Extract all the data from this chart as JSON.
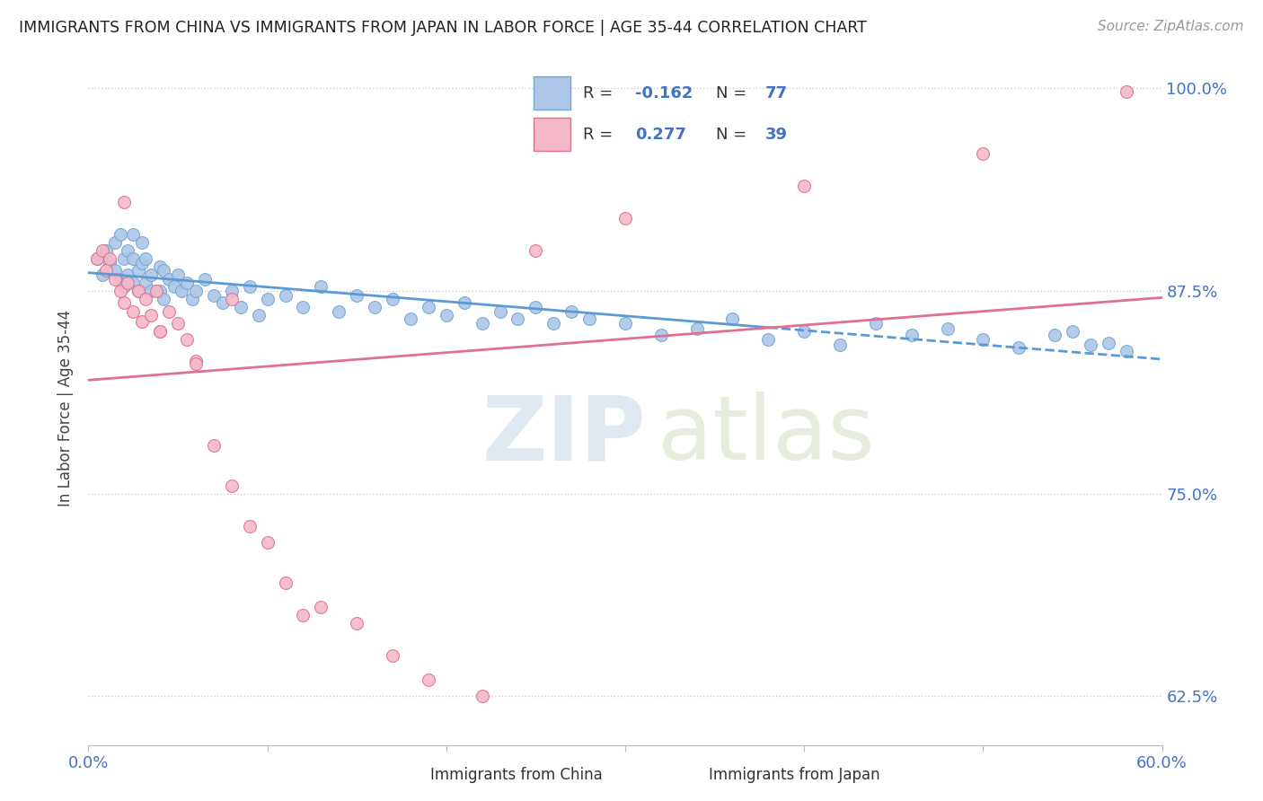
{
  "title": "IMMIGRANTS FROM CHINA VS IMMIGRANTS FROM JAPAN IN LABOR FORCE | AGE 35-44 CORRELATION CHART",
  "source": "Source: ZipAtlas.com",
  "ylabel": "In Labor Force | Age 35-44",
  "xlim": [
    0.0,
    0.6
  ],
  "ylim": [
    0.595,
    1.01
  ],
  "yticks": [
    0.625,
    0.75,
    0.875,
    1.0
  ],
  "ytick_labels": [
    "62.5%",
    "75.0%",
    "87.5%",
    "100.0%"
  ],
  "xtick_labels_left": "0.0%",
  "xtick_labels_right": "60.0%",
  "china_color": "#aec6e8",
  "china_edge_color": "#6fa8d4",
  "japan_color": "#f5b8c8",
  "japan_edge_color": "#e07090",
  "china_trend_color": "#5b9bd5",
  "japan_trend_color": "#e07090",
  "r_china": -0.162,
  "n_china": 77,
  "r_japan": 0.277,
  "n_japan": 39,
  "background_color": "#ffffff",
  "china_x": [
    0.005,
    0.008,
    0.01,
    0.012,
    0.015,
    0.015,
    0.018,
    0.018,
    0.02,
    0.02,
    0.022,
    0.022,
    0.025,
    0.025,
    0.025,
    0.028,
    0.028,
    0.03,
    0.03,
    0.032,
    0.032,
    0.035,
    0.035,
    0.04,
    0.04,
    0.042,
    0.042,
    0.045,
    0.048,
    0.05,
    0.052,
    0.055,
    0.058,
    0.06,
    0.065,
    0.07,
    0.075,
    0.08,
    0.085,
    0.09,
    0.095,
    0.1,
    0.11,
    0.12,
    0.13,
    0.14,
    0.15,
    0.16,
    0.17,
    0.18,
    0.19,
    0.2,
    0.21,
    0.22,
    0.23,
    0.24,
    0.25,
    0.26,
    0.27,
    0.28,
    0.3,
    0.32,
    0.34,
    0.36,
    0.38,
    0.4,
    0.42,
    0.44,
    0.46,
    0.48,
    0.5,
    0.52,
    0.54,
    0.56,
    0.58,
    0.55,
    0.57
  ],
  "china_y": [
    0.895,
    0.885,
    0.9,
    0.892,
    0.888,
    0.905,
    0.882,
    0.91,
    0.895,
    0.878,
    0.9,
    0.885,
    0.895,
    0.88,
    0.91,
    0.888,
    0.875,
    0.892,
    0.905,
    0.88,
    0.895,
    0.885,
    0.875,
    0.89,
    0.875,
    0.888,
    0.87,
    0.882,
    0.878,
    0.885,
    0.875,
    0.88,
    0.87,
    0.875,
    0.882,
    0.872,
    0.868,
    0.875,
    0.865,
    0.878,
    0.86,
    0.87,
    0.872,
    0.865,
    0.878,
    0.862,
    0.872,
    0.865,
    0.87,
    0.858,
    0.865,
    0.86,
    0.868,
    0.855,
    0.862,
    0.858,
    0.865,
    0.855,
    0.862,
    0.858,
    0.855,
    0.848,
    0.852,
    0.858,
    0.845,
    0.85,
    0.842,
    0.855,
    0.848,
    0.852,
    0.845,
    0.84,
    0.848,
    0.842,
    0.838,
    0.85,
    0.843
  ],
  "japan_x": [
    0.005,
    0.008,
    0.01,
    0.012,
    0.015,
    0.018,
    0.02,
    0.022,
    0.025,
    0.028,
    0.03,
    0.032,
    0.035,
    0.038,
    0.04,
    0.045,
    0.05,
    0.055,
    0.06,
    0.07,
    0.08,
    0.09,
    0.1,
    0.11,
    0.12,
    0.13,
    0.15,
    0.17,
    0.19,
    0.22,
    0.25,
    0.3,
    0.4,
    0.5,
    0.58,
    0.02,
    0.04,
    0.06,
    0.08
  ],
  "japan_y": [
    0.895,
    0.9,
    0.888,
    0.895,
    0.882,
    0.875,
    0.868,
    0.88,
    0.862,
    0.875,
    0.856,
    0.87,
    0.86,
    0.875,
    0.85,
    0.862,
    0.855,
    0.845,
    0.832,
    0.78,
    0.755,
    0.73,
    0.72,
    0.695,
    0.675,
    0.68,
    0.67,
    0.65,
    0.635,
    0.625,
    0.9,
    0.92,
    0.94,
    0.96,
    0.998,
    0.93,
    0.85,
    0.83,
    0.87
  ]
}
